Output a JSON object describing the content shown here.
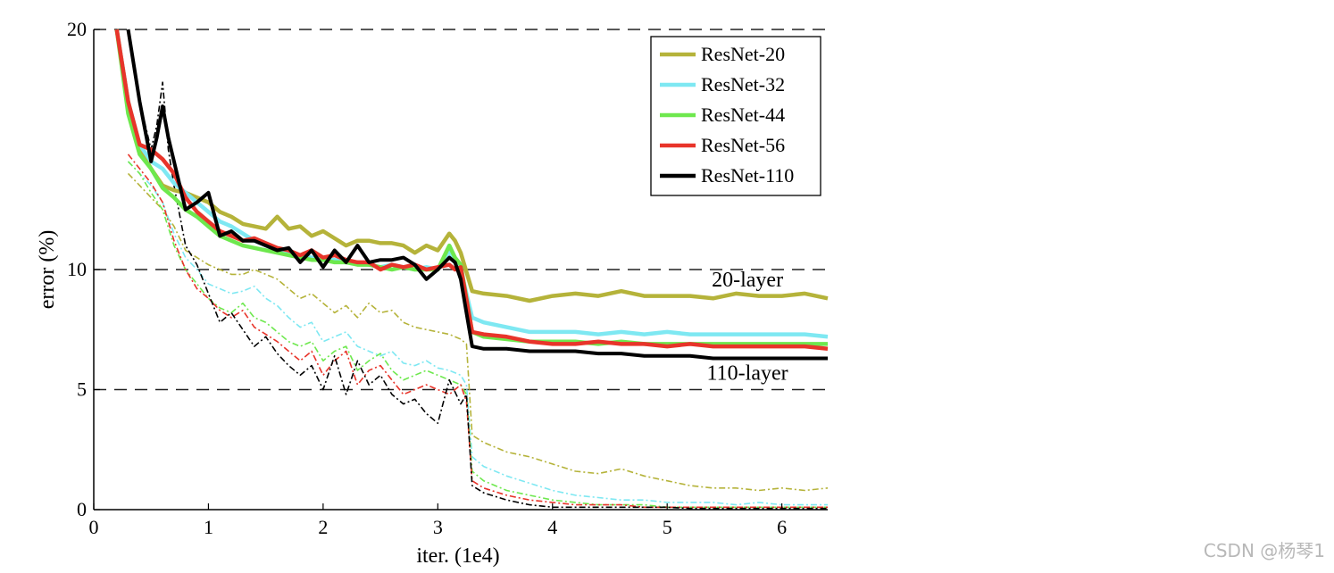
{
  "watermark": "CSDN @杨琴1",
  "chart_data": {
    "type": "line",
    "title": "",
    "xlabel": "iter. (1e4)",
    "ylabel": "error (%)",
    "xlim": [
      0,
      6.4
    ],
    "ylim": [
      0,
      20
    ],
    "x_ticks": [
      "0",
      "1",
      "2",
      "3",
      "4",
      "5",
      "6"
    ],
    "y_ticks": [
      "0",
      "5",
      "10",
      "20"
    ],
    "y_tick_values": [
      0,
      5,
      10,
      20
    ],
    "grid": "dashed horizontal at 5, 10, 20",
    "legend_position": "top-right",
    "annotations": [
      {
        "text": "20-layer",
        "x": 5.7,
        "y": 9.3
      },
      {
        "text": "110-layer",
        "x": 5.7,
        "y": 5.4
      }
    ],
    "series": [
      {
        "name": "ResNet-20",
        "color": "#b5b33a",
        "test_error": {
          "x": [
            0.2,
            0.3,
            0.4,
            0.5,
            0.6,
            0.7,
            0.8,
            0.9,
            1.0,
            1.1,
            1.2,
            1.3,
            1.4,
            1.5,
            1.6,
            1.7,
            1.8,
            1.9,
            2.0,
            2.1,
            2.2,
            2.3,
            2.4,
            2.5,
            2.6,
            2.7,
            2.8,
            2.9,
            3.0,
            3.1,
            3.15,
            3.2,
            3.3,
            3.4,
            3.6,
            3.8,
            4.0,
            4.2,
            4.4,
            4.6,
            4.8,
            5.0,
            5.2,
            5.4,
            5.6,
            5.8,
            6.0,
            6.2,
            6.4
          ],
          "y": [
            20,
            17,
            15,
            14.2,
            13.5,
            13.3,
            13.2,
            13.0,
            12.8,
            12.4,
            12.2,
            11.9,
            11.8,
            11.7,
            12.2,
            11.7,
            11.8,
            11.4,
            11.6,
            11.3,
            11.0,
            11.2,
            11.2,
            11.1,
            11.1,
            11.0,
            10.7,
            11.0,
            10.8,
            11.5,
            11.2,
            10.7,
            9.1,
            9.0,
            8.9,
            8.7,
            8.9,
            9.0,
            8.9,
            9.1,
            8.9,
            8.9,
            8.9,
            8.8,
            9.0,
            8.9,
            8.9,
            9.0,
            8.8
          ]
        },
        "train_error": {
          "x": [
            0.3,
            0.4,
            0.5,
            0.6,
            0.7,
            0.8,
            0.9,
            1.0,
            1.1,
            1.2,
            1.3,
            1.4,
            1.5,
            1.6,
            1.7,
            1.8,
            1.9,
            2.0,
            2.1,
            2.2,
            2.3,
            2.4,
            2.5,
            2.6,
            2.7,
            2.8,
            2.9,
            3.0,
            3.1,
            3.2,
            3.25,
            3.3,
            3.4,
            3.6,
            3.8,
            4.0,
            4.2,
            4.4,
            4.6,
            4.8,
            5.0,
            5.2,
            5.4,
            5.6,
            5.8,
            6.0,
            6.2,
            6.4
          ],
          "y": [
            14,
            13.5,
            13,
            12.5,
            11.8,
            10.8,
            10.5,
            10.2,
            10.0,
            9.8,
            9.8,
            10.0,
            9.8,
            9.6,
            9.2,
            8.8,
            9.0,
            8.6,
            8.2,
            8.5,
            8.0,
            8.6,
            8.2,
            8.3,
            7.8,
            7.6,
            7.5,
            7.4,
            7.3,
            7.1,
            6.9,
            3.1,
            2.8,
            2.4,
            2.2,
            1.9,
            1.6,
            1.5,
            1.7,
            1.4,
            1.2,
            1.0,
            0.9,
            0.9,
            0.8,
            0.9,
            0.8,
            0.9
          ]
        }
      },
      {
        "name": "ResNet-32",
        "color": "#7ee8f2",
        "test_error": {
          "x": [
            0.2,
            0.3,
            0.4,
            0.5,
            0.6,
            0.7,
            0.8,
            0.9,
            1.0,
            1.1,
            1.2,
            1.3,
            1.4,
            1.5,
            1.6,
            1.7,
            1.8,
            1.9,
            2.0,
            2.1,
            2.2,
            2.3,
            2.4,
            2.5,
            2.6,
            2.7,
            2.8,
            2.9,
            3.0,
            3.1,
            3.15,
            3.2,
            3.3,
            3.4,
            3.6,
            3.8,
            4.0,
            4.2,
            4.4,
            4.6,
            4.8,
            5.0,
            5.2,
            5.4,
            5.6,
            5.8,
            6.0,
            6.2,
            6.4
          ],
          "y": [
            20,
            17,
            15.2,
            14.5,
            14.2,
            13.6,
            13.2,
            12.8,
            12.4,
            12.0,
            11.8,
            11.5,
            11.2,
            11.0,
            10.8,
            10.7,
            10.6,
            10.5,
            10.4,
            10.4,
            10.3,
            10.3,
            10.2,
            10.1,
            10.2,
            10.1,
            10.0,
            10.1,
            10.0,
            10.8,
            10.3,
            10.0,
            8.0,
            7.8,
            7.6,
            7.4,
            7.4,
            7.4,
            7.3,
            7.4,
            7.3,
            7.4,
            7.3,
            7.3,
            7.3,
            7.3,
            7.3,
            7.3,
            7.2
          ]
        },
        "train_error": {
          "x": [
            0.3,
            0.4,
            0.5,
            0.6,
            0.7,
            0.8,
            0.9,
            1.0,
            1.1,
            1.2,
            1.3,
            1.4,
            1.5,
            1.6,
            1.7,
            1.8,
            1.9,
            2.0,
            2.1,
            2.2,
            2.3,
            2.4,
            2.5,
            2.6,
            2.7,
            2.8,
            2.9,
            3.0,
            3.1,
            3.2,
            3.25,
            3.3,
            3.4,
            3.6,
            3.8,
            4.0,
            4.2,
            4.4,
            4.6,
            4.8,
            5.0,
            5.2,
            5.4,
            5.6,
            5.8,
            6.0,
            6.2,
            6.4
          ],
          "y": [
            14.5,
            14,
            13.5,
            12.8,
            11.5,
            10.5,
            10.0,
            9.4,
            9.2,
            9.0,
            9.1,
            9.3,
            8.8,
            8.5,
            8.0,
            7.6,
            7.8,
            7.0,
            7.2,
            7.4,
            6.8,
            6.6,
            6.4,
            6.6,
            6.1,
            6.0,
            6.2,
            5.9,
            5.8,
            5.6,
            5.2,
            2.2,
            1.8,
            1.4,
            1.1,
            0.8,
            0.6,
            0.5,
            0.4,
            0.4,
            0.3,
            0.3,
            0.3,
            0.2,
            0.3,
            0.2,
            0.2,
            0.2
          ]
        }
      },
      {
        "name": "ResNet-44",
        "color": "#6ee84e",
        "test_error": {
          "x": [
            0.2,
            0.3,
            0.4,
            0.5,
            0.6,
            0.7,
            0.8,
            0.9,
            1.0,
            1.1,
            1.2,
            1.3,
            1.4,
            1.5,
            1.6,
            1.7,
            1.8,
            1.9,
            2.0,
            2.1,
            2.2,
            2.3,
            2.4,
            2.5,
            2.6,
            2.7,
            2.8,
            2.9,
            3.0,
            3.1,
            3.15,
            3.2,
            3.3,
            3.4,
            3.6,
            3.8,
            4.0,
            4.2,
            4.4,
            4.6,
            4.8,
            5.0,
            5.2,
            5.4,
            5.6,
            5.8,
            6.0,
            6.2,
            6.4
          ],
          "y": [
            20,
            16.5,
            14.8,
            14.2,
            13.4,
            13.0,
            12.5,
            12.2,
            11.8,
            11.4,
            11.2,
            11.0,
            10.9,
            10.8,
            10.7,
            10.6,
            10.5,
            10.4,
            10.4,
            10.3,
            10.3,
            10.2,
            10.2,
            10.1,
            10.0,
            10.1,
            10.0,
            10.0,
            10.0,
            11.0,
            10.5,
            10.2,
            7.4,
            7.2,
            7.1,
            7.0,
            7.0,
            7.0,
            6.9,
            7.0,
            6.9,
            6.9,
            6.9,
            6.9,
            6.9,
            6.9,
            6.9,
            6.9,
            6.9
          ]
        },
        "train_error": {
          "x": [
            0.3,
            0.4,
            0.5,
            0.6,
            0.7,
            0.8,
            0.9,
            1.0,
            1.1,
            1.2,
            1.3,
            1.4,
            1.5,
            1.6,
            1.7,
            1.8,
            1.9,
            2.0,
            2.1,
            2.2,
            2.3,
            2.4,
            2.5,
            2.6,
            2.7,
            2.8,
            2.9,
            3.0,
            3.1,
            3.2,
            3.25,
            3.3,
            3.4,
            3.6,
            3.8,
            4.0,
            4.2,
            4.4,
            4.6,
            4.8,
            5.0,
            5.2,
            5.4,
            5.6,
            5.8,
            6.0,
            6.2,
            6.4
          ],
          "y": [
            14.5,
            14,
            13.2,
            12.5,
            11.0,
            10.0,
            9.4,
            8.8,
            8.4,
            8.2,
            8.6,
            8.0,
            7.8,
            7.4,
            7.0,
            6.8,
            7.0,
            6.2,
            6.6,
            6.8,
            5.8,
            6.2,
            6.5,
            5.8,
            5.4,
            5.6,
            5.8,
            5.6,
            5.4,
            5.2,
            4.8,
            1.6,
            1.2,
            0.8,
            0.6,
            0.4,
            0.3,
            0.2,
            0.2,
            0.2,
            0.1,
            0.1,
            0.1,
            0.1,
            0.1,
            0.1,
            0.1,
            0.1
          ]
        }
      },
      {
        "name": "ResNet-56",
        "color": "#e8342a",
        "test_error": {
          "x": [
            0.2,
            0.3,
            0.4,
            0.5,
            0.6,
            0.7,
            0.8,
            0.9,
            1.0,
            1.1,
            1.2,
            1.3,
            1.4,
            1.5,
            1.6,
            1.7,
            1.8,
            1.9,
            2.0,
            2.1,
            2.2,
            2.3,
            2.4,
            2.5,
            2.6,
            2.7,
            2.8,
            2.9,
            3.0,
            3.1,
            3.15,
            3.2,
            3.3,
            3.4,
            3.6,
            3.8,
            4.0,
            4.2,
            4.4,
            4.6,
            4.8,
            5.0,
            5.2,
            5.4,
            5.6,
            5.8,
            6.0,
            6.2,
            6.4
          ],
          "y": [
            20,
            17,
            15.2,
            15.0,
            14.6,
            14.0,
            13.0,
            12.4,
            12.0,
            11.6,
            11.4,
            11.2,
            11.3,
            11.1,
            10.9,
            10.8,
            10.6,
            10.8,
            10.5,
            10.6,
            10.4,
            10.3,
            10.3,
            10.0,
            10.2,
            10.1,
            10.2,
            10.0,
            10.1,
            10.2,
            10.0,
            10.1,
            7.4,
            7.3,
            7.2,
            7.0,
            6.9,
            6.9,
            7.0,
            6.9,
            6.9,
            6.8,
            6.9,
            6.8,
            6.8,
            6.8,
            6.8,
            6.8,
            6.7
          ]
        },
        "train_error": {
          "x": [
            0.3,
            0.4,
            0.5,
            0.6,
            0.7,
            0.8,
            0.9,
            1.0,
            1.1,
            1.2,
            1.3,
            1.4,
            1.5,
            1.6,
            1.7,
            1.8,
            1.9,
            2.0,
            2.1,
            2.2,
            2.3,
            2.4,
            2.5,
            2.6,
            2.7,
            2.8,
            2.9,
            3.0,
            3.1,
            3.2,
            3.25,
            3.3,
            3.4,
            3.6,
            3.8,
            4.0,
            4.2,
            4.4,
            4.6,
            4.8,
            5.0,
            5.2,
            5.4,
            5.6,
            5.8,
            6.0,
            6.2,
            6.4
          ],
          "y": [
            14.8,
            14.2,
            13.6,
            12.8,
            11.2,
            10.0,
            9.2,
            8.8,
            8.3,
            8.0,
            8.3,
            7.6,
            7.3,
            7.0,
            6.6,
            6.2,
            6.6,
            5.6,
            6.2,
            6.6,
            5.2,
            5.8,
            6.0,
            5.4,
            4.8,
            5.0,
            5.2,
            5.0,
            4.8,
            5.2,
            4.5,
            1.2,
            0.9,
            0.6,
            0.4,
            0.3,
            0.2,
            0.2,
            0.2,
            0.1,
            0.1,
            0.1,
            0.1,
            0.1,
            0.1,
            0.1,
            0.1,
            0.1
          ]
        }
      },
      {
        "name": "ResNet-110",
        "color": "#000000",
        "test_error": {
          "x": [
            0.3,
            0.4,
            0.5,
            0.55,
            0.6,
            0.65,
            0.7,
            0.8,
            0.9,
            1.0,
            1.1,
            1.2,
            1.3,
            1.4,
            1.5,
            1.6,
            1.7,
            1.8,
            1.9,
            2.0,
            2.1,
            2.2,
            2.3,
            2.4,
            2.5,
            2.6,
            2.7,
            2.8,
            2.9,
            3.0,
            3.1,
            3.15,
            3.2,
            3.3,
            3.4,
            3.6,
            3.8,
            4.0,
            4.2,
            4.4,
            4.6,
            4.8,
            5.0,
            5.2,
            5.4,
            5.6,
            5.8,
            6.0,
            6.2,
            6.4
          ],
          "y": [
            20,
            17,
            14.5,
            15.5,
            16.8,
            15.5,
            14.5,
            12.5,
            12.8,
            13.2,
            11.4,
            11.6,
            11.2,
            11.2,
            11.0,
            10.8,
            10.9,
            10.3,
            10.8,
            10.1,
            10.8,
            10.3,
            11.0,
            10.3,
            10.4,
            10.4,
            10.5,
            10.2,
            9.6,
            10.0,
            10.5,
            10.3,
            9.6,
            6.8,
            6.7,
            6.7,
            6.6,
            6.6,
            6.6,
            6.5,
            6.5,
            6.4,
            6.4,
            6.4,
            6.3,
            6.3,
            6.3,
            6.3,
            6.3,
            6.3
          ]
        },
        "train_error": {
          "x": [
            0.3,
            0.4,
            0.5,
            0.55,
            0.6,
            0.65,
            0.7,
            0.8,
            0.9,
            1.0,
            1.1,
            1.2,
            1.3,
            1.4,
            1.5,
            1.6,
            1.7,
            1.8,
            1.9,
            2.0,
            2.1,
            2.2,
            2.3,
            2.4,
            2.5,
            2.6,
            2.7,
            2.8,
            2.9,
            3.0,
            3.1,
            3.2,
            3.25,
            3.3,
            3.4,
            3.6,
            3.8,
            4.0,
            4.2,
            4.4,
            4.6,
            4.8,
            5.0,
            5.2,
            5.4,
            5.6,
            5.8,
            6.0,
            6.2,
            6.4
          ],
          "y": [
            20,
            17,
            15.0,
            16.0,
            17.8,
            15.0,
            13.5,
            11.0,
            10.2,
            9.0,
            7.8,
            8.2,
            7.5,
            6.8,
            7.2,
            6.5,
            6.0,
            5.6,
            6.0,
            5.0,
            6.4,
            4.8,
            6.2,
            5.2,
            5.6,
            4.8,
            4.4,
            4.6,
            4.0,
            3.6,
            5.4,
            4.4,
            4.8,
            1.0,
            0.7,
            0.4,
            0.2,
            0.1,
            0.1,
            0.1,
            0.1,
            0.1,
            0.1,
            0.05,
            0.05,
            0.05,
            0.05,
            0.05,
            0.05,
            0.05
          ]
        }
      }
    ]
  }
}
